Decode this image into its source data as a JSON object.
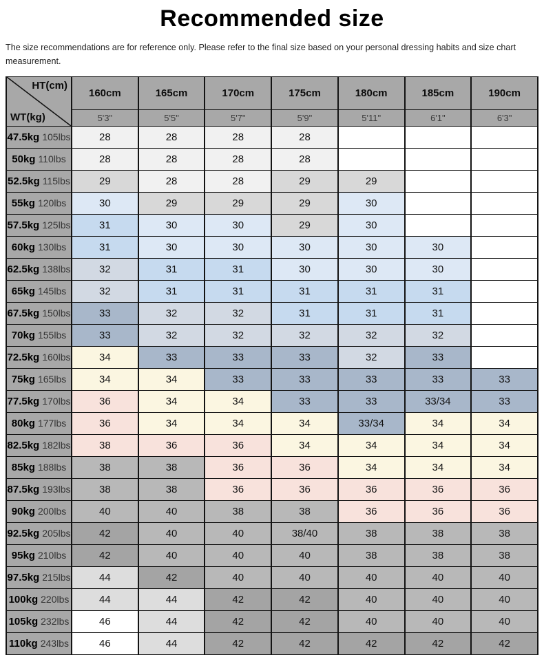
{
  "title": "Recommended size",
  "subtitle": "The size recommendations are for reference only. Please refer to the final size based on your personal dressing habits and size chart measurement.",
  "chart_data": {
    "type": "table",
    "title": "Recommended size",
    "corner": {
      "top_label": "HT(cm)",
      "bottom_label": "WT(kg)"
    },
    "heights_cm": [
      "160cm",
      "165cm",
      "170cm",
      "175cm",
      "180cm",
      "185cm",
      "190cm"
    ],
    "heights_ft": [
      "5'3\"",
      "5'5\"",
      "5'7\"",
      "5'9\"",
      "5'11\"",
      "6'1\"",
      "6'3\""
    ],
    "palette": {
      "w28": "#f1f1f1",
      "g29": "#d8d8d8",
      "b30": "#dde8f5",
      "b31": "#c6daef",
      "bg32": "#d2d9e3",
      "s33": "#a8b7ca",
      "c34": "#fbf6e1",
      "p36": "#f8e2dc",
      "g38": "#b8b8b8",
      "g42": "#a4a4a4",
      "lg44": "#dddddd",
      "wh": "#ffffff",
      "header_bg": "#a8a8a8",
      "border": "#131313"
    },
    "rows": [
      {
        "kg": "47.5kg",
        "lbs": "105lbs",
        "sizes": [
          "28",
          "28",
          "28",
          "28",
          "",
          "",
          ""
        ],
        "bands": [
          "w28",
          "w28",
          "w28",
          "w28",
          "wh",
          "wh",
          "wh"
        ]
      },
      {
        "kg": "50kg",
        "lbs": "110lbs",
        "sizes": [
          "28",
          "28",
          "28",
          "28",
          "",
          "",
          ""
        ],
        "bands": [
          "w28",
          "w28",
          "w28",
          "w28",
          "wh",
          "wh",
          "wh"
        ]
      },
      {
        "kg": "52.5kg",
        "lbs": "115lbs",
        "sizes": [
          "29",
          "28",
          "28",
          "29",
          "29",
          "",
          ""
        ],
        "bands": [
          "g29",
          "w28",
          "w28",
          "g29",
          "g29",
          "wh",
          "wh"
        ]
      },
      {
        "kg": "55kg",
        "lbs": "120lbs",
        "sizes": [
          "30",
          "29",
          "29",
          "29",
          "30",
          "",
          ""
        ],
        "bands": [
          "b30",
          "g29",
          "g29",
          "g29",
          "b30",
          "wh",
          "wh"
        ]
      },
      {
        "kg": "57.5kg",
        "lbs": "125lbs",
        "sizes": [
          "31",
          "30",
          "30",
          "29",
          "30",
          "",
          ""
        ],
        "bands": [
          "b31",
          "b30",
          "b30",
          "g29",
          "b30",
          "wh",
          "wh"
        ]
      },
      {
        "kg": "60kg",
        "lbs": "130lbs",
        "sizes": [
          "31",
          "30",
          "30",
          "30",
          "30",
          "30",
          ""
        ],
        "bands": [
          "b31",
          "b30",
          "b30",
          "b30",
          "b30",
          "b30",
          "wh"
        ]
      },
      {
        "kg": "62.5kg",
        "lbs": "138lbs",
        "sizes": [
          "32",
          "31",
          "31",
          "30",
          "30",
          "30",
          ""
        ],
        "bands": [
          "bg32",
          "b31",
          "b31",
          "b30",
          "b30",
          "b30",
          "wh"
        ]
      },
      {
        "kg": "65kg",
        "lbs": "145lbs",
        "sizes": [
          "32",
          "31",
          "31",
          "31",
          "31",
          "31",
          ""
        ],
        "bands": [
          "bg32",
          "b31",
          "b31",
          "b31",
          "b31",
          "b31",
          "wh"
        ]
      },
      {
        "kg": "67.5kg",
        "lbs": "150lbs",
        "sizes": [
          "33",
          "32",
          "32",
          "31",
          "31",
          "31",
          ""
        ],
        "bands": [
          "s33",
          "bg32",
          "bg32",
          "b31",
          "b31",
          "b31",
          "wh"
        ]
      },
      {
        "kg": "70kg",
        "lbs": "155lbs",
        "sizes": [
          "33",
          "32",
          "32",
          "32",
          "32",
          "32",
          ""
        ],
        "bands": [
          "s33",
          "bg32",
          "bg32",
          "bg32",
          "bg32",
          "bg32",
          "wh"
        ]
      },
      {
        "kg": "72.5kg",
        "lbs": "160lbs",
        "sizes": [
          "34",
          "33",
          "33",
          "33",
          "32",
          "33",
          ""
        ],
        "bands": [
          "c34",
          "s33",
          "s33",
          "s33",
          "bg32",
          "s33",
          "wh"
        ]
      },
      {
        "kg": "75kg",
        "lbs": "165lbs",
        "sizes": [
          "34",
          "34",
          "33",
          "33",
          "33",
          "33",
          "33"
        ],
        "bands": [
          "c34",
          "c34",
          "s33",
          "s33",
          "s33",
          "s33",
          "s33"
        ]
      },
      {
        "kg": "77.5kg",
        "lbs": "170lbs",
        "sizes": [
          "36",
          "34",
          "34",
          "33",
          "33",
          "33/34",
          "33"
        ],
        "bands": [
          "p36",
          "c34",
          "c34",
          "s33",
          "s33",
          "s33",
          "s33"
        ]
      },
      {
        "kg": "80kg",
        "lbs": "177lbs",
        "sizes": [
          "36",
          "34",
          "34",
          "34",
          "33/34",
          "34",
          "34"
        ],
        "bands": [
          "p36",
          "c34",
          "c34",
          "c34",
          "s33",
          "c34",
          "c34"
        ]
      },
      {
        "kg": "82.5kg",
        "lbs": "182lbs",
        "sizes": [
          "38",
          "36",
          "36",
          "34",
          "34",
          "34",
          "34"
        ],
        "bands": [
          "p36",
          "p36",
          "p36",
          "c34",
          "c34",
          "c34",
          "c34"
        ]
      },
      {
        "kg": "85kg",
        "lbs": "188lbs",
        "sizes": [
          "38",
          "38",
          "36",
          "36",
          "34",
          "34",
          "34"
        ],
        "bands": [
          "g38",
          "g38",
          "p36",
          "p36",
          "c34",
          "c34",
          "c34"
        ]
      },
      {
        "kg": "87.5kg",
        "lbs": "193lbs",
        "sizes": [
          "38",
          "38",
          "36",
          "36",
          "36",
          "36",
          "36"
        ],
        "bands": [
          "g38",
          "g38",
          "p36",
          "p36",
          "p36",
          "p36",
          "p36"
        ]
      },
      {
        "kg": "90kg",
        "lbs": "200lbs",
        "sizes": [
          "40",
          "40",
          "38",
          "38",
          "36",
          "36",
          "36"
        ],
        "bands": [
          "g38",
          "g38",
          "g38",
          "g38",
          "p36",
          "p36",
          "p36"
        ]
      },
      {
        "kg": "92.5kg",
        "lbs": "205lbs",
        "sizes": [
          "42",
          "40",
          "40",
          "38/40",
          "38",
          "38",
          "38"
        ],
        "bands": [
          "g42",
          "g38",
          "g38",
          "g38",
          "g38",
          "g38",
          "g38"
        ]
      },
      {
        "kg": "95kg",
        "lbs": "210lbs",
        "sizes": [
          "42",
          "40",
          "40",
          "40",
          "38",
          "38",
          "38"
        ],
        "bands": [
          "g42",
          "g38",
          "g38",
          "g38",
          "g38",
          "g38",
          "g38"
        ]
      },
      {
        "kg": "97.5kg",
        "lbs": "215lbs",
        "sizes": [
          "44",
          "42",
          "40",
          "40",
          "40",
          "40",
          "40"
        ],
        "bands": [
          "lg44",
          "g42",
          "g38",
          "g38",
          "g38",
          "g38",
          "g38"
        ]
      },
      {
        "kg": "100kg",
        "lbs": "220lbs",
        "sizes": [
          "44",
          "44",
          "42",
          "42",
          "40",
          "40",
          "40"
        ],
        "bands": [
          "lg44",
          "lg44",
          "g42",
          "g42",
          "g38",
          "g38",
          "g38"
        ]
      },
      {
        "kg": "105kg",
        "lbs": "232lbs",
        "sizes": [
          "46",
          "44",
          "42",
          "42",
          "40",
          "40",
          "40"
        ],
        "bands": [
          "wh",
          "lg44",
          "g42",
          "g42",
          "g38",
          "g38",
          "g38"
        ]
      },
      {
        "kg": "110kg",
        "lbs": "243lbs",
        "sizes": [
          "46",
          "44",
          "42",
          "42",
          "42",
          "42",
          "42"
        ],
        "bands": [
          "wh",
          "lg44",
          "g42",
          "g42",
          "g42",
          "g42",
          "g42"
        ]
      }
    ]
  }
}
